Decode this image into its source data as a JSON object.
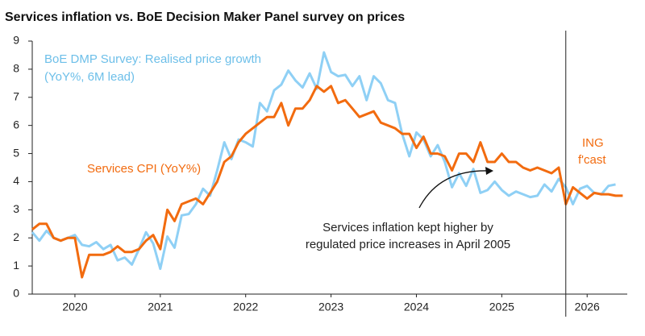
{
  "chart_data": {
    "type": "line",
    "title": "Services inflation vs. BoE Decision Maker Panel survey on prices",
    "annotations": [
      "BoE DMP Survey: Realised price growth",
      "(YoY%, 6M lead)",
      "Services CPI (YoY%)",
      "ING",
      "f'cast",
      "Services inflation kept higher by",
      "regulated price increases in April 2005"
    ],
    "forecast_start": 2026.25,
    "xlim": [
      2020,
      2026.97
    ],
    "xticks": [
      {
        "value": 2020.5,
        "label": "2020"
      },
      {
        "value": 2021.5,
        "label": "2021"
      },
      {
        "value": 2022.5,
        "label": "2022"
      },
      {
        "value": 2023.5,
        "label": "2023"
      },
      {
        "value": 2024.5,
        "label": "2024"
      },
      {
        "value": 2025.5,
        "label": "2025"
      },
      {
        "value": 2026.5,
        "label": "2026"
      }
    ],
    "ylim": [
      0,
      9
    ],
    "yticks": [
      0,
      1,
      2,
      3,
      4,
      5,
      6,
      7,
      8,
      9
    ],
    "x": [
      2020,
      2020.083,
      2020.167,
      2020.25,
      2020.333,
      2020.417,
      2020.5,
      2020.583,
      2020.667,
      2020.75,
      2020.833,
      2020.917,
      2021,
      2021.083,
      2021.167,
      2021.25,
      2021.333,
      2021.417,
      2021.5,
      2021.583,
      2021.667,
      2021.75,
      2021.833,
      2021.917,
      2022,
      2022.083,
      2022.167,
      2022.25,
      2022.333,
      2022.417,
      2022.5,
      2022.583,
      2022.667,
      2022.75,
      2022.833,
      2022.917,
      2023,
      2023.083,
      2023.167,
      2023.25,
      2023.333,
      2023.417,
      2023.5,
      2023.583,
      2023.667,
      2023.75,
      2023.833,
      2023.917,
      2024,
      2024.083,
      2024.167,
      2024.25,
      2024.333,
      2024.417,
      2024.5,
      2024.583,
      2024.667,
      2024.75,
      2024.833,
      2024.917,
      2025,
      2025.083,
      2025.167,
      2025.25,
      2025.333,
      2025.417,
      2025.5,
      2025.583,
      2025.667,
      2025.75,
      2025.833,
      2025.917,
      2026,
      2026.083,
      2026.167,
      2026.25,
      2026.333,
      2026.417,
      2026.5,
      2026.583,
      2026.667,
      2026.75,
      2026.833,
      2026.917
    ],
    "series": [
      {
        "name": "Services CPI (YoY%)",
        "color": "#f26b0f",
        "values": [
          2.3,
          2.5,
          2.5,
          2.0,
          1.9,
          2.0,
          2.0,
          0.6,
          1.4,
          1.4,
          1.4,
          1.5,
          1.7,
          1.5,
          1.5,
          1.6,
          1.9,
          2.1,
          1.6,
          3.0,
          2.6,
          3.2,
          3.3,
          3.4,
          3.2,
          3.6,
          4.0,
          4.7,
          4.9,
          5.4,
          5.7,
          5.9,
          6.1,
          6.3,
          6.3,
          6.8,
          6.0,
          6.6,
          6.6,
          6.9,
          7.4,
          7.2,
          7.4,
          6.8,
          6.9,
          6.6,
          6.3,
          6.4,
          6.5,
          6.1,
          6.0,
          5.9,
          5.7,
          5.7,
          5.2,
          5.6,
          5.0,
          5.0,
          4.9,
          4.4,
          5.0,
          5.0,
          4.7,
          5.4,
          4.7,
          4.7,
          5.0,
          4.7,
          4.7,
          4.5,
          4.4,
          4.5,
          4.4,
          4.3,
          4.5,
          3.2,
          3.8,
          3.6,
          3.4,
          3.6,
          3.55,
          3.55,
          3.5,
          3.5
        ]
      },
      {
        "name": "BoE DMP Survey: Realised price growth",
        "color": "#8fd0f5",
        "values": [
          2.2,
          1.9,
          2.25,
          2.0,
          1.9,
          2.0,
          2.1,
          1.75,
          1.7,
          1.85,
          1.6,
          1.75,
          1.2,
          1.3,
          1.05,
          1.6,
          2.2,
          1.8,
          0.9,
          2.05,
          1.65,
          2.8,
          2.85,
          3.2,
          3.75,
          3.5,
          4.4,
          5.4,
          4.8,
          5.5,
          5.4,
          5.25,
          6.8,
          6.5,
          7.25,
          7.45,
          7.95,
          7.6,
          7.35,
          7.85,
          7.3,
          8.6,
          7.9,
          7.75,
          7.8,
          7.4,
          7.75,
          6.9,
          7.75,
          7.5,
          6.9,
          6.8,
          5.7,
          4.9,
          5.75,
          5.5,
          4.9,
          5.3,
          4.7,
          3.8,
          4.3,
          3.85,
          4.45,
          3.6,
          3.7,
          4.0,
          3.7,
          3.5,
          3.65,
          3.55,
          3.45,
          3.5,
          3.9,
          3.65,
          4.1,
          3.8,
          3.2,
          3.75,
          3.85,
          3.6,
          3.55,
          3.85,
          3.9,
          null
        ]
      }
    ]
  }
}
